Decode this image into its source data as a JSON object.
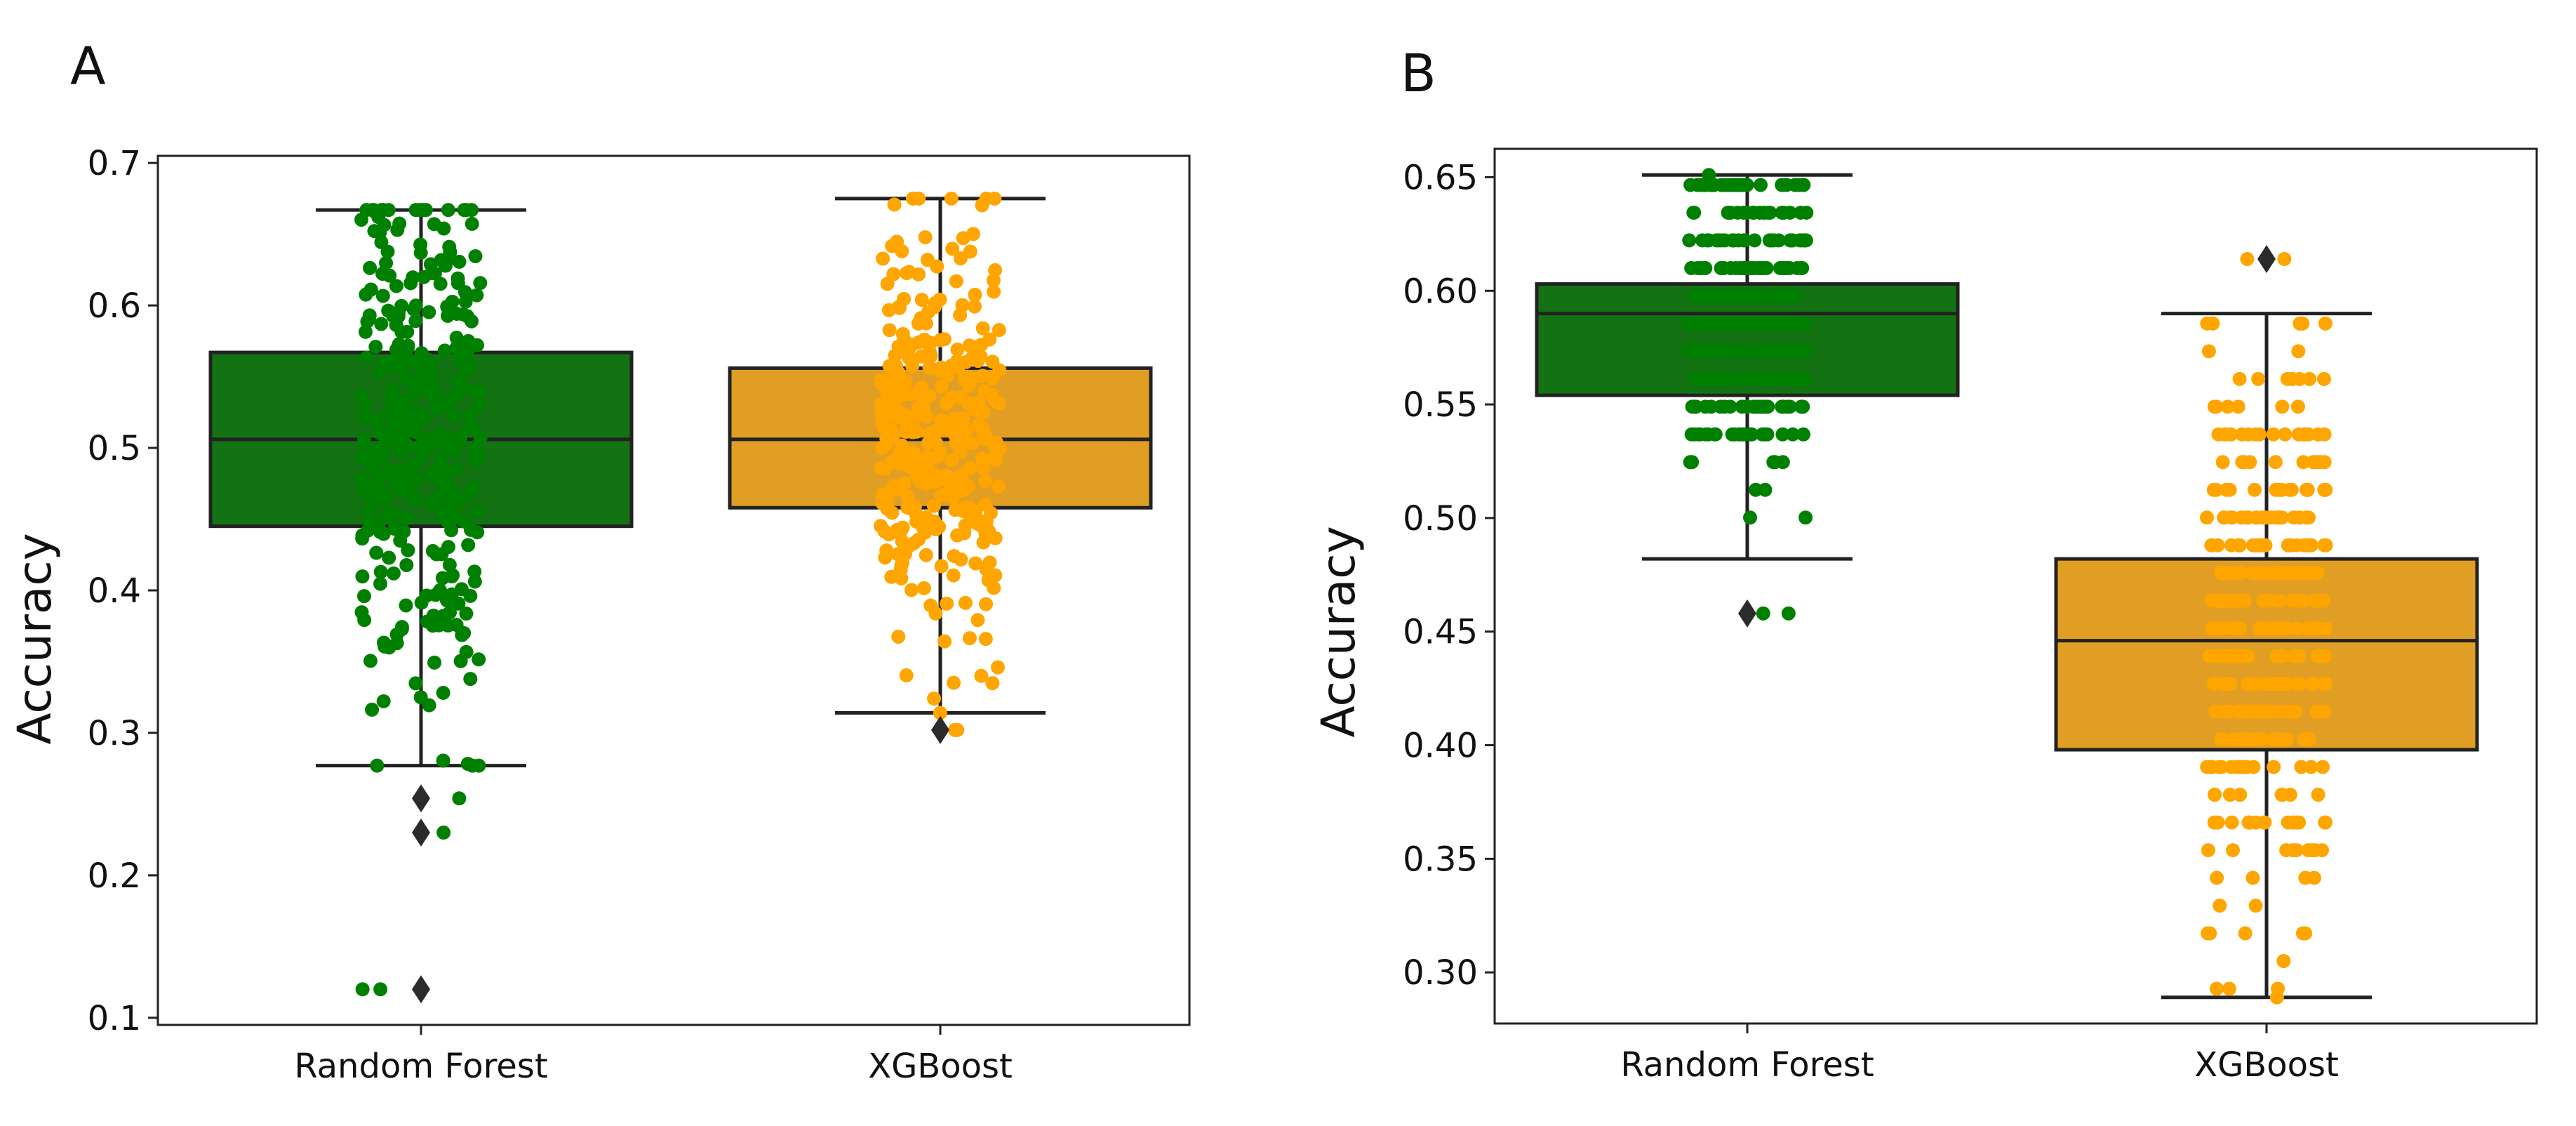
{
  "chart_data": [
    {
      "panel_label": "A",
      "type": "box",
      "ylabel": "Accuracy",
      "xlabel": "",
      "ylim": [
        0.095,
        0.705
      ],
      "yticks": [
        0.1,
        0.2,
        0.3,
        0.4,
        0.5,
        0.6,
        0.7
      ],
      "ytick_labels": [
        "0.1",
        "0.2",
        "0.3",
        "0.4",
        "0.5",
        "0.6",
        "0.7"
      ],
      "categories": [
        "Random Forest",
        "XGBoost"
      ],
      "boxes": [
        {
          "name": "Random Forest",
          "color": "#137313",
          "point_color": "#008000",
          "whisker_low": 0.277,
          "q1": 0.445,
          "median": 0.506,
          "q3": 0.567,
          "whisker_high": 0.667,
          "outliers": [
            0.254,
            0.23,
            0.12
          ],
          "points_low": 0.12,
          "points_high": 0.667
        },
        {
          "name": "XGBoost",
          "color": "#e09f24",
          "point_color": "#ffa500",
          "whisker_low": 0.314,
          "q1": 0.458,
          "median": 0.506,
          "q3": 0.556,
          "whisker_high": 0.675,
          "outliers": [
            0.302
          ],
          "points_low": 0.302,
          "points_high": 0.675
        }
      ]
    },
    {
      "panel_label": "B",
      "type": "box",
      "ylabel": "Accuracy",
      "xlabel": "",
      "ylim": [
        0.2775,
        0.6625
      ],
      "yticks": [
        0.3,
        0.35,
        0.4,
        0.45,
        0.5,
        0.55,
        0.6,
        0.65
      ],
      "ytick_labels": [
        "0.30",
        "0.35",
        "0.40",
        "0.45",
        "0.50",
        "0.55",
        "0.60",
        "0.65"
      ],
      "categories": [
        "Random Forest",
        "XGBoost"
      ],
      "boxes": [
        {
          "name": "Random Forest",
          "color": "#137313",
          "point_color": "#008000",
          "whisker_low": 0.482,
          "q1": 0.554,
          "median": 0.59,
          "q3": 0.603,
          "whisker_high": 0.651,
          "outliers": [
            0.458
          ],
          "points_low": 0.458,
          "points_high": 0.651
        },
        {
          "name": "XGBoost",
          "color": "#e09f24",
          "point_color": "#ffa500",
          "whisker_low": 0.289,
          "q1": 0.398,
          "median": 0.446,
          "q3": 0.482,
          "whisker_high": 0.59,
          "outliers": [
            0.614
          ],
          "points_low": 0.289,
          "points_high": 0.614
        }
      ]
    }
  ]
}
